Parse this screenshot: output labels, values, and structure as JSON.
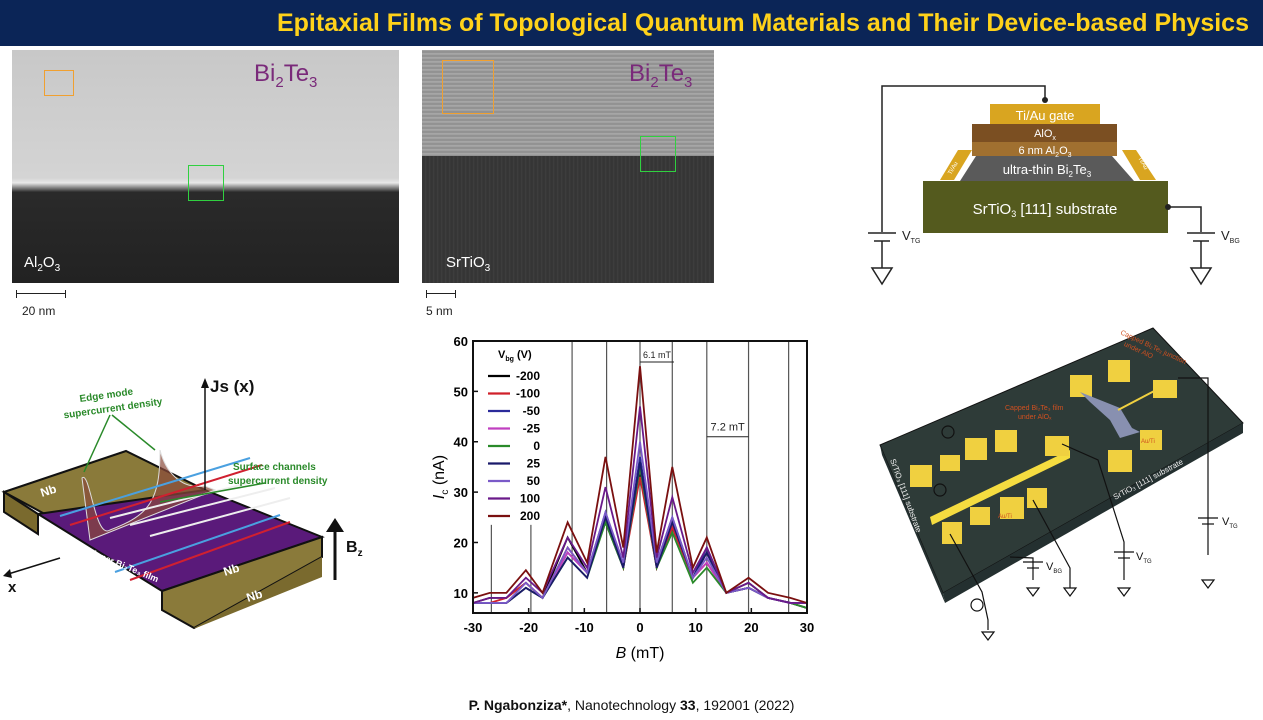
{
  "title": "Epitaxial Films of Topological Quantum Materials and Their Device-based Physics",
  "tem_left": {
    "material": "Bi",
    "sub1": "2",
    "material2": "Te",
    "sub2": "3",
    "substrate": "Al",
    "substrate_sub": "2",
    "substrate2": "O",
    "substrate_sub2": "3",
    "scale": "20 nm"
  },
  "tem_right": {
    "material": "Bi",
    "sub1": "2",
    "material2": "Te",
    "sub2": "3",
    "substrate": "SrTiO",
    "substrate_sub": "3",
    "scale": "5 nm"
  },
  "stack": {
    "gate": "Ti/Au gate",
    "aiox": "AlO",
    "aiox_sub": "x",
    "al2o3": "6 nm Al",
    "al2o3_sub": "2",
    "al2o3_b": "O",
    "al2o3_sub2": "3",
    "film": "ultra-thin Bi",
    "film_sub": "2",
    "film_b": "Te",
    "film_sub2": "3",
    "substrate": "SrTiO",
    "substrate_sub": "3",
    "substrate_b": " [111] substrate",
    "contact": "Ti/Au",
    "vtg": "V",
    "vtg_sub": "TG",
    "vbg": "V",
    "vbg_sub": "BG"
  },
  "junction": {
    "js": "Js (x)",
    "edge1": "Edge mode",
    "edge2": "supercurrent density",
    "surf1": "Surface channels",
    "surf2": "supercurrent density",
    "nb": "Nb",
    "film": "Thinner Bi₂Te₃ film",
    "x": "x",
    "bz": "B",
    "bz_sub": "z"
  },
  "device": {
    "capped_junction1": "Capped Bi₂Te₃ junction",
    "capped_junction2": "under AlO",
    "capped_film1": "Capped Bi₂Te₃ film",
    "capped_film2": "under AlOₓ",
    "substrate": "SrTiO₃ [111] substrate",
    "auti": "Au/Ti",
    "nb": "Nb",
    "v": "V",
    "vtg_sub": "TG",
    "vbg_sub": "BG"
  },
  "chart_data": {
    "type": "line",
    "xlabel": "B (mT)",
    "ylabel": "I_c (nA)",
    "xlabel_main": "B",
    "xlabel_unit": " (mT)",
    "ylabel_main": "I",
    "ylabel_sub": "c",
    "ylabel_unit": " (nA)",
    "xlim": [
      -30,
      30
    ],
    "ylim": [
      6,
      60
    ],
    "xticks": [
      -30,
      -20,
      -10,
      0,
      10,
      20,
      30
    ],
    "yticks": [
      10,
      20,
      30,
      40,
      50,
      60
    ],
    "legend_title": "V",
    "legend_title_sub": "bg",
    "legend_title_unit": " (V)",
    "legend_placement": "top-left",
    "vlines": [
      -26.7,
      -19.6,
      -12.2,
      -6.0,
      0,
      5.8,
      12.0,
      19.5,
      26.7
    ],
    "annotations": [
      {
        "text": "6.1 mT",
        "from": 0,
        "to": 6.1
      },
      {
        "text": "7.2 mT",
        "from": 12.0,
        "to": 19.5
      }
    ],
    "x": [
      -30,
      -27,
      -24,
      -20.5,
      -17.5,
      -13,
      -9.5,
      -6.2,
      -3,
      0,
      3,
      5.8,
      9.5,
      12,
      15.5,
      19.5,
      23,
      27,
      30
    ],
    "series": [
      {
        "name": "-200",
        "color": "#000000",
        "values": [
          8,
          9,
          9,
          12,
          9,
          21,
          14,
          24,
          15,
          34,
          15,
          23,
          13,
          18,
          10,
          12,
          9,
          8,
          7
        ]
      },
      {
        "name": "-100",
        "color": "#d0202a",
        "values": [
          8,
          8,
          9,
          12,
          9,
          19,
          14,
          25,
          15,
          33,
          15,
          23,
          13,
          16,
          10,
          11,
          9,
          8,
          7
        ]
      },
      {
        "name": "-50",
        "color": "#2a2a9a",
        "values": [
          8,
          8,
          8,
          11,
          9,
          18,
          14,
          26,
          15,
          37,
          16,
          25,
          13,
          19,
          10,
          11,
          9,
          8,
          7
        ]
      },
      {
        "name": "-25",
        "color": "#c040c0",
        "values": [
          8,
          8,
          8,
          11,
          9,
          18,
          14,
          25,
          15,
          35,
          15,
          24,
          13,
          16,
          10,
          11,
          9,
          8,
          8
        ]
      },
      {
        "name": "0",
        "color": "#2a8a2a",
        "values": [
          8,
          8,
          8,
          11,
          9,
          17,
          13,
          24,
          15,
          35,
          15,
          22,
          12,
          15,
          10,
          11,
          9,
          8,
          7
        ]
      },
      {
        "name": "25",
        "color": "#1a1a6a",
        "values": [
          8,
          8,
          8,
          11,
          9,
          17,
          13,
          25,
          15,
          36,
          15,
          24,
          13,
          18,
          10,
          11,
          9,
          8,
          8
        ]
      },
      {
        "name": "50",
        "color": "#7a5ac8",
        "values": [
          8,
          8,
          8,
          12,
          9,
          19,
          14,
          26,
          16,
          40,
          16,
          25,
          13,
          17,
          10,
          11,
          9,
          8,
          8
        ]
      },
      {
        "name": "100",
        "color": "#6a1a8a",
        "values": [
          8,
          9,
          9,
          13,
          10,
          21,
          15,
          31,
          17,
          47,
          17,
          29,
          14,
          19,
          10,
          12,
          9,
          8,
          8
        ]
      },
      {
        "name": "200",
        "color": "#7a1010",
        "values": [
          9,
          10,
          10,
          14.5,
          10,
          24,
          16,
          37,
          19,
          55,
          18,
          35,
          15,
          21,
          10,
          13,
          10,
          9,
          8
        ]
      }
    ]
  },
  "citation": {
    "author": "P. Ngabonziza*",
    "journal": ", Nanotechnology ",
    "volume": "33",
    "rest": ", 192001 (2022)"
  }
}
